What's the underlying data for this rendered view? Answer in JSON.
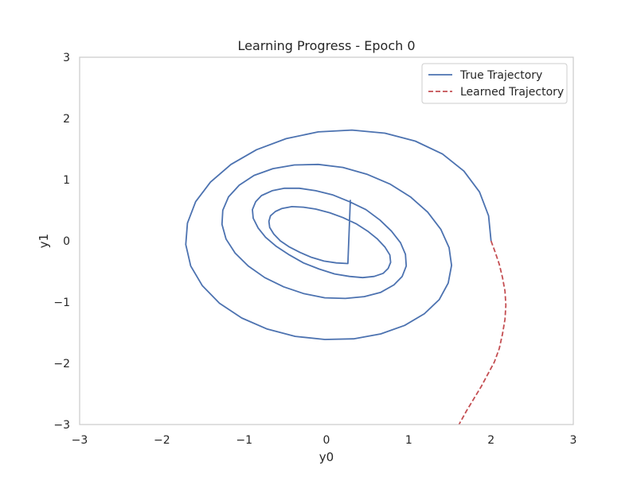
{
  "chart_data": {
    "type": "line",
    "title": "Learning Progress - Epoch 0",
    "xlabel": "y0",
    "ylabel": "y1",
    "xlim": [
      -3,
      3
    ],
    "ylim": [
      -3,
      3
    ],
    "xticks": [
      -3,
      -2,
      -1,
      0,
      1,
      2,
      3
    ],
    "yticks": [
      -3,
      -2,
      -1,
      0,
      1,
      2,
      3
    ],
    "xtick_labels": [
      "−3",
      "−2",
      "−1",
      "0",
      "1",
      "2",
      "3"
    ],
    "ytick_labels": [
      "−3",
      "−2",
      "−1",
      "0",
      "1",
      "2",
      "3"
    ],
    "grid": false,
    "legend_position": "top-right",
    "series": [
      {
        "name": "True Trajectory",
        "color": "#4c72b0",
        "style": "solid",
        "x": [
          2.0,
          1.97,
          1.86,
          1.67,
          1.41,
          1.08,
          0.71,
          0.31,
          -0.1,
          -0.49,
          -0.85,
          -1.16,
          -1.41,
          -1.59,
          -1.69,
          -1.71,
          -1.65,
          -1.51,
          -1.3,
          -1.03,
          -0.72,
          -0.38,
          -0.02,
          0.33,
          0.66,
          0.95,
          1.19,
          1.37,
          1.48,
          1.52,
          1.49,
          1.39,
          1.23,
          1.02,
          0.77,
          0.49,
          0.2,
          -0.1,
          -0.39,
          -0.65,
          -0.88,
          -1.06,
          -1.19,
          -1.26,
          -1.27,
          -1.22,
          -1.11,
          -0.95,
          -0.75,
          -0.52,
          -0.28,
          -0.02,
          0.23,
          0.46,
          0.66,
          0.82,
          0.92,
          0.97,
          0.96,
          0.9,
          0.79,
          0.65,
          0.48,
          0.28,
          0.08,
          -0.13,
          -0.33,
          -0.51,
          -0.66,
          -0.79,
          -0.86,
          -0.9,
          -0.89,
          -0.83,
          -0.74,
          -0.61,
          -0.45,
          -0.28,
          -0.09,
          0.1,
          0.28,
          0.44,
          0.58,
          0.69,
          0.75,
          0.78,
          0.77,
          0.71,
          0.62,
          0.5,
          0.36,
          0.2,
          0.04,
          -0.13,
          -0.28,
          -0.42,
          -0.54,
          -0.62,
          -0.68,
          -0.7,
          -0.69,
          -0.64,
          -0.56,
          -0.45,
          -0.32,
          -0.18,
          -0.03,
          0.12,
          0.26,
          0.29
        ],
        "y": [
          0.0,
          0.41,
          0.8,
          1.14,
          1.42,
          1.63,
          1.76,
          1.81,
          1.78,
          1.67,
          1.49,
          1.25,
          0.96,
          0.64,
          0.29,
          -0.06,
          -0.41,
          -0.73,
          -1.02,
          -1.26,
          -1.44,
          -1.56,
          -1.61,
          -1.6,
          -1.52,
          -1.38,
          -1.19,
          -0.96,
          -0.69,
          -0.4,
          -0.11,
          0.19,
          0.47,
          0.72,
          0.93,
          1.09,
          1.2,
          1.25,
          1.24,
          1.18,
          1.07,
          0.91,
          0.72,
          0.5,
          0.27,
          0.03,
          -0.2,
          -0.41,
          -0.6,
          -0.75,
          -0.86,
          -0.93,
          -0.94,
          -0.91,
          -0.84,
          -0.72,
          -0.58,
          -0.41,
          -0.22,
          -0.03,
          0.16,
          0.34,
          0.51,
          0.64,
          0.75,
          0.82,
          0.86,
          0.86,
          0.82,
          0.74,
          0.64,
          0.51,
          0.37,
          0.21,
          0.06,
          -0.09,
          -0.23,
          -0.36,
          -0.46,
          -0.54,
          -0.58,
          -0.6,
          -0.58,
          -0.53,
          -0.45,
          -0.35,
          -0.23,
          -0.1,
          0.03,
          0.16,
          0.28,
          0.38,
          0.46,
          0.52,
          0.55,
          0.56,
          0.53,
          0.48,
          0.41,
          0.32,
          0.22,
          0.11,
          0.0,
          -0.1,
          -0.19,
          -0.27,
          -0.33,
          -0.36,
          -0.37,
          0.67
        ]
      },
      {
        "name": "Learned Trajectory",
        "color": "#c44e52",
        "style": "dashed",
        "x": [
          2.0,
          2.05,
          2.1,
          2.14,
          2.17,
          2.18,
          2.17,
          2.14,
          2.1,
          2.04,
          1.96,
          1.88,
          1.79,
          1.7,
          1.61
        ],
        "y": [
          0.0,
          -0.18,
          -0.38,
          -0.6,
          -0.82,
          -1.05,
          -1.28,
          -1.52,
          -1.76,
          -1.98,
          -2.18,
          -2.38,
          -2.58,
          -2.78,
          -3.0
        ]
      }
    ]
  }
}
